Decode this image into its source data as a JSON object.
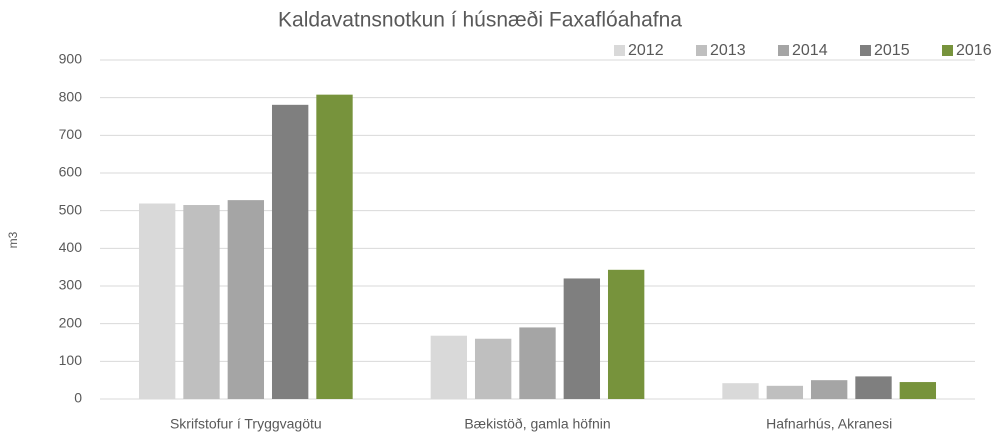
{
  "chart_data": {
    "type": "bar",
    "title": "Kaldavatnsnotkun í húsnæði Faxaflóahafna",
    "y_label": "m3",
    "categories": [
      "Skrifstofur í Tryggvagötu",
      "Bækistöð, gamla höfnin",
      "Hafnarhús,  Akranesi"
    ],
    "series": [
      {
        "name": "2012",
        "color": "#d9d9d9",
        "values": [
          519,
          168,
          42
        ]
      },
      {
        "name": "2013",
        "color": "#bfbfbf",
        "values": [
          515,
          160,
          35
        ]
      },
      {
        "name": "2014",
        "color": "#a5a5a5",
        "values": [
          528,
          190,
          50
        ]
      },
      {
        "name": "2015",
        "color": "#7f7f7f",
        "values": [
          781,
          320,
          60
        ]
      },
      {
        "name": "2016",
        "color": "#77933c",
        "values": [
          808,
          343,
          45
        ]
      }
    ],
    "ylim": [
      0,
      900
    ],
    "yticks": [
      0,
      100,
      200,
      300,
      400,
      500,
      600,
      700,
      800,
      900
    ],
    "grid": true,
    "legend": "top-right"
  }
}
